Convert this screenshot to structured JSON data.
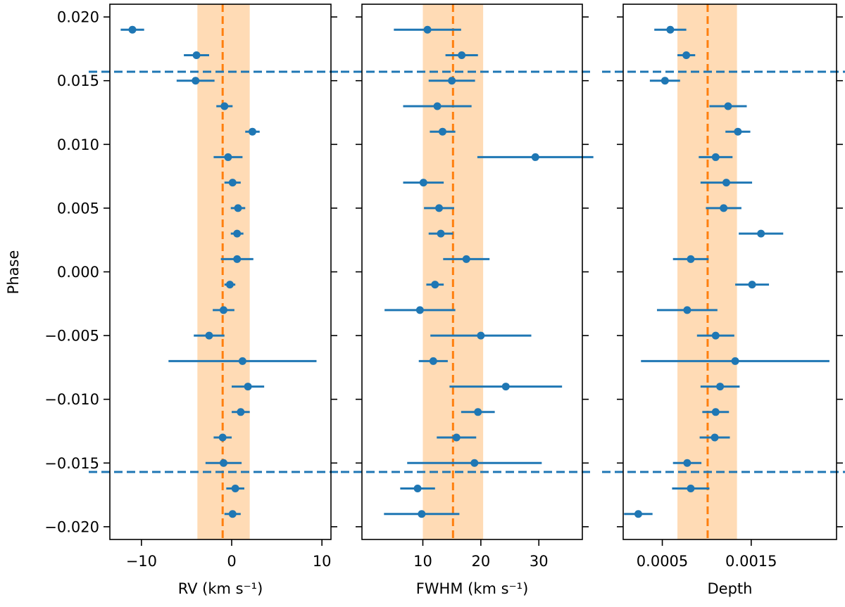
{
  "chart_data": {
    "type": "scatter",
    "ylabel": "Phase",
    "ylim": [
      -0.021,
      0.021
    ],
    "yticks": [
      0.02,
      0.015,
      0.01,
      0.005,
      0.0,
      -0.005,
      -0.01,
      -0.015,
      -0.02
    ],
    "ytick_labels": [
      "0.020",
      "0.015",
      "0.010",
      "0.005",
      "0.000",
      "−0.005",
      "−0.010",
      "−0.015",
      "−0.020"
    ],
    "transit_phase_limits": [
      0.0157,
      -0.0157
    ],
    "colors": {
      "points": "#1f77b4",
      "reference": "#ff7f0e",
      "band": "#ffdbb5",
      "transit": "#1f77b4"
    },
    "panels": [
      {
        "id": "rv",
        "xlabel": "RV (km s⁻¹)",
        "xlim": [
          -13.5,
          11
        ],
        "xticks": [
          -10,
          0,
          10
        ],
        "xtick_labels": [
          "−10",
          "0",
          "10"
        ],
        "reference": -1.0,
        "band": [
          -3.8,
          2.0
        ],
        "points": [
          {
            "y": 0.019,
            "x": -11.0,
            "err": 1.3
          },
          {
            "y": 0.017,
            "x": -3.9,
            "err": 1.4
          },
          {
            "y": 0.015,
            "x": -4.0,
            "err": 2.1
          },
          {
            "y": 0.013,
            "x": -0.8,
            "err": 0.9
          },
          {
            "y": 0.011,
            "x": 2.3,
            "err": 0.8
          },
          {
            "y": 0.009,
            "x": -0.4,
            "err": 1.6
          },
          {
            "y": 0.007,
            "x": 0.1,
            "err": 0.9
          },
          {
            "y": 0.005,
            "x": 0.7,
            "err": 0.8
          },
          {
            "y": 0.003,
            "x": 0.6,
            "err": 0.7
          },
          {
            "y": 0.001,
            "x": 0.6,
            "err": 1.8
          },
          {
            "y": -0.001,
            "x": -0.2,
            "err": 0.6
          },
          {
            "y": -0.003,
            "x": -0.9,
            "err": 1.2
          },
          {
            "y": -0.005,
            "x": -2.5,
            "err": 1.7
          },
          {
            "y": -0.007,
            "x": 1.2,
            "err": 8.2
          },
          {
            "y": -0.009,
            "x": 1.8,
            "err": 1.8
          },
          {
            "y": -0.011,
            "x": 1.0,
            "err": 1.0
          },
          {
            "y": -0.013,
            "x": -1.0,
            "err": 1.0
          },
          {
            "y": -0.015,
            "x": -0.9,
            "err": 2.0
          },
          {
            "y": -0.017,
            "x": 0.4,
            "err": 1.0
          },
          {
            "y": -0.019,
            "x": 0.1,
            "err": 0.9
          }
        ]
      },
      {
        "id": "fwhm",
        "xlabel": "FWHM (km s⁻¹)",
        "xlim": [
          -0.5,
          37.5
        ],
        "xticks": [
          10,
          20,
          30
        ],
        "xtick_labels": [
          "10",
          "20",
          "30"
        ],
        "reference": 15.2,
        "band": [
          10.0,
          20.4
        ],
        "points": [
          {
            "y": 0.019,
            "x": 10.8,
            "err": 5.8
          },
          {
            "y": 0.017,
            "x": 16.7,
            "err": 2.8
          },
          {
            "y": 0.015,
            "x": 15.0,
            "err": 4.0
          },
          {
            "y": 0.013,
            "x": 12.5,
            "err": 5.9
          },
          {
            "y": 0.011,
            "x": 13.4,
            "err": 2.2
          },
          {
            "y": 0.009,
            "x": 29.4,
            "err": 10.0
          },
          {
            "y": 0.007,
            "x": 10.1,
            "err": 3.5
          },
          {
            "y": 0.005,
            "x": 12.8,
            "err": 2.6
          },
          {
            "y": 0.003,
            "x": 13.1,
            "err": 2.1
          },
          {
            "y": 0.001,
            "x": 17.5,
            "err": 4.0
          },
          {
            "y": -0.001,
            "x": 12.1,
            "err": 1.5
          },
          {
            "y": -0.003,
            "x": 9.5,
            "err": 6.1
          },
          {
            "y": -0.005,
            "x": 20.0,
            "err": 8.7
          },
          {
            "y": -0.007,
            "x": 11.8,
            "err": 2.5
          },
          {
            "y": -0.009,
            "x": 24.3,
            "err": 9.7
          },
          {
            "y": -0.011,
            "x": 19.5,
            "err": 2.9
          },
          {
            "y": -0.013,
            "x": 15.8,
            "err": 3.4
          },
          {
            "y": -0.015,
            "x": 18.9,
            "err": 11.6
          },
          {
            "y": -0.017,
            "x": 9.1,
            "err": 3.0
          },
          {
            "y": -0.019,
            "x": 9.8,
            "err": 6.5
          }
        ]
      },
      {
        "id": "depth",
        "xlabel": "Depth",
        "xlim": [
          6e-05,
          0.00246
        ],
        "xticks": [
          0.0005,
          0.0015
        ],
        "xtick_labels": [
          "0.0005",
          "0.0015"
        ],
        "reference": 0.00101,
        "band": [
          0.00067,
          0.00134
        ],
        "points": [
          {
            "y": 0.019,
            "x": 0.00059,
            "err": 0.00018
          },
          {
            "y": 0.017,
            "x": 0.00077,
            "err": 0.0001
          },
          {
            "y": 0.015,
            "x": 0.00053,
            "err": 0.00017
          },
          {
            "y": 0.013,
            "x": 0.00124,
            "err": 0.00021
          },
          {
            "y": 0.011,
            "x": 0.00135,
            "err": 0.00014
          },
          {
            "y": 0.009,
            "x": 0.0011,
            "err": 0.00019
          },
          {
            "y": 0.007,
            "x": 0.00122,
            "err": 0.00029
          },
          {
            "y": 0.005,
            "x": 0.00119,
            "err": 0.0002
          },
          {
            "y": 0.003,
            "x": 0.00161,
            "err": 0.00025
          },
          {
            "y": 0.001,
            "x": 0.00082,
            "err": 0.0002
          },
          {
            "y": -0.001,
            "x": 0.00151,
            "err": 0.00019
          },
          {
            "y": -0.003,
            "x": 0.00078,
            "err": 0.00034
          },
          {
            "y": -0.005,
            "x": 0.0011,
            "err": 0.00021
          },
          {
            "y": -0.007,
            "x": 0.00132,
            "err": 0.00106
          },
          {
            "y": -0.009,
            "x": 0.00115,
            "err": 0.00022
          },
          {
            "y": -0.011,
            "x": 0.0011,
            "err": 0.00015
          },
          {
            "y": -0.013,
            "x": 0.00109,
            "err": 0.00017
          },
          {
            "y": -0.015,
            "x": 0.00078,
            "err": 0.00016
          },
          {
            "y": -0.017,
            "x": 0.00082,
            "err": 0.00021
          },
          {
            "y": -0.019,
            "x": 0.00023,
            "err": 0.00016
          }
        ]
      }
    ]
  }
}
